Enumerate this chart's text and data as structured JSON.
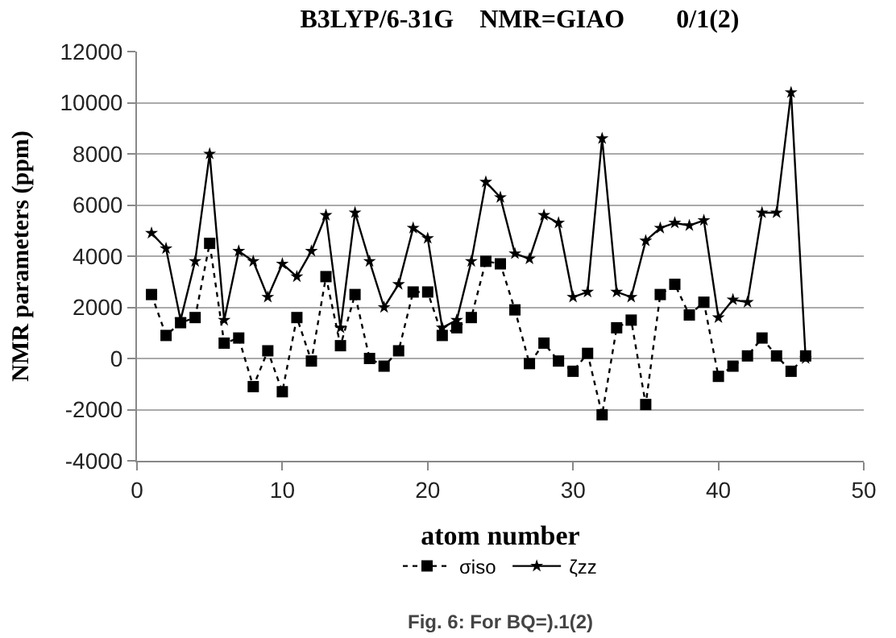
{
  "chart_data": {
    "type": "line",
    "title": "B3LYP/6-31G    NMR=GIAO        0/1(2)",
    "xlabel": "atom number",
    "ylabel": "NMR parameters (ppm)",
    "x": [
      1,
      2,
      3,
      4,
      5,
      6,
      7,
      8,
      9,
      10,
      11,
      12,
      13,
      14,
      15,
      16,
      17,
      18,
      19,
      20,
      21,
      22,
      23,
      24,
      25,
      26,
      27,
      28,
      29,
      30,
      31,
      32,
      33,
      34,
      35,
      36,
      37,
      38,
      39,
      40,
      41,
      42,
      43,
      44,
      45,
      46
    ],
    "series": [
      {
        "name": "σiso",
        "color": "#000000",
        "marker": "square",
        "line_style": "dotted",
        "values": [
          2500,
          900,
          1400,
          1600,
          4500,
          600,
          800,
          -1100,
          300,
          -1300,
          1600,
          -100,
          3200,
          500,
          2500,
          0,
          -300,
          300,
          2600,
          2600,
          900,
          1200,
          1600,
          3800,
          3700,
          1900,
          -200,
          600,
          -100,
          -500,
          200,
          -2200,
          1200,
          1500,
          -1800,
          2500,
          2900,
          1700,
          2200,
          -700,
          -300,
          100,
          800,
          100,
          -500,
          100
        ]
      },
      {
        "name": "ζzz",
        "color": "#000000",
        "marker": "star",
        "line_style": "solid",
        "values": [
          4900,
          4300,
          1500,
          3800,
          8000,
          1500,
          4200,
          3800,
          2400,
          3700,
          3200,
          4200,
          5600,
          1200,
          5700,
          3800,
          2000,
          2900,
          5100,
          4700,
          1200,
          1500,
          3800,
          6900,
          6300,
          4100,
          3900,
          5600,
          5300,
          2400,
          2600,
          8600,
          2600,
          2400,
          4600,
          5100,
          5300,
          5200,
          5400,
          1600,
          2300,
          2200,
          5700,
          5700,
          10400,
          0
        ]
      }
    ],
    "xlim": [
      0,
      50
    ],
    "xticks": [
      0,
      10,
      20,
      30,
      40,
      50
    ],
    "ylim": [
      -4000,
      12000
    ],
    "yticks": [
      -4000,
      -2000,
      0,
      2000,
      4000,
      6000,
      8000,
      10000,
      12000
    ],
    "grid": "y",
    "legend": "bottom",
    "annotations": [
      "Fig. 6: For BQ=).1(2)"
    ]
  }
}
